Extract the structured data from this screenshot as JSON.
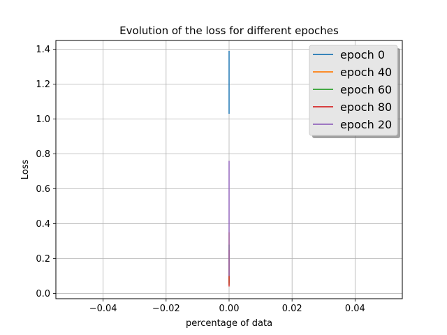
{
  "chart_data": {
    "type": "line",
    "title": "Evolution of the loss for different epoches",
    "xlabel": "percentage of data",
    "ylabel": "Loss",
    "xlim": [
      -0.055,
      0.055
    ],
    "ylim": [
      -0.03,
      1.45
    ],
    "xticks": [
      -0.04,
      -0.02,
      0.0,
      0.02,
      0.04
    ],
    "xtick_labels": [
      "−0.04",
      "−0.02",
      "0.00",
      "0.02",
      "0.04"
    ],
    "yticks": [
      0.0,
      0.2,
      0.4,
      0.6,
      0.8,
      1.0,
      1.2,
      1.4
    ],
    "ytick_labels": [
      "0.0",
      "0.2",
      "0.4",
      "0.6",
      "0.8",
      "1.0",
      "1.2",
      "1.4"
    ],
    "grid": true,
    "legend_position": "top-right",
    "series": [
      {
        "name": "epoch 0",
        "color": "#1f77b4",
        "x": [
          0,
          0
        ],
        "y": [
          1.39,
          1.03
        ]
      },
      {
        "name": "epoch 40",
        "color": "#ff7f0e",
        "x": [
          0,
          0
        ],
        "y": [
          0.35,
          0.06
        ]
      },
      {
        "name": "epoch 60",
        "color": "#2ca02c",
        "x": [
          0,
          0
        ],
        "y": [
          0.28,
          0.05
        ]
      },
      {
        "name": "epoch 80",
        "color": "#d62728",
        "x": [
          0,
          0
        ],
        "y": [
          0.25,
          0.04
        ]
      },
      {
        "name": "epoch 20",
        "color": "#9467bd",
        "x": [
          0,
          0
        ],
        "y": [
          0.76,
          0.1
        ]
      }
    ]
  }
}
